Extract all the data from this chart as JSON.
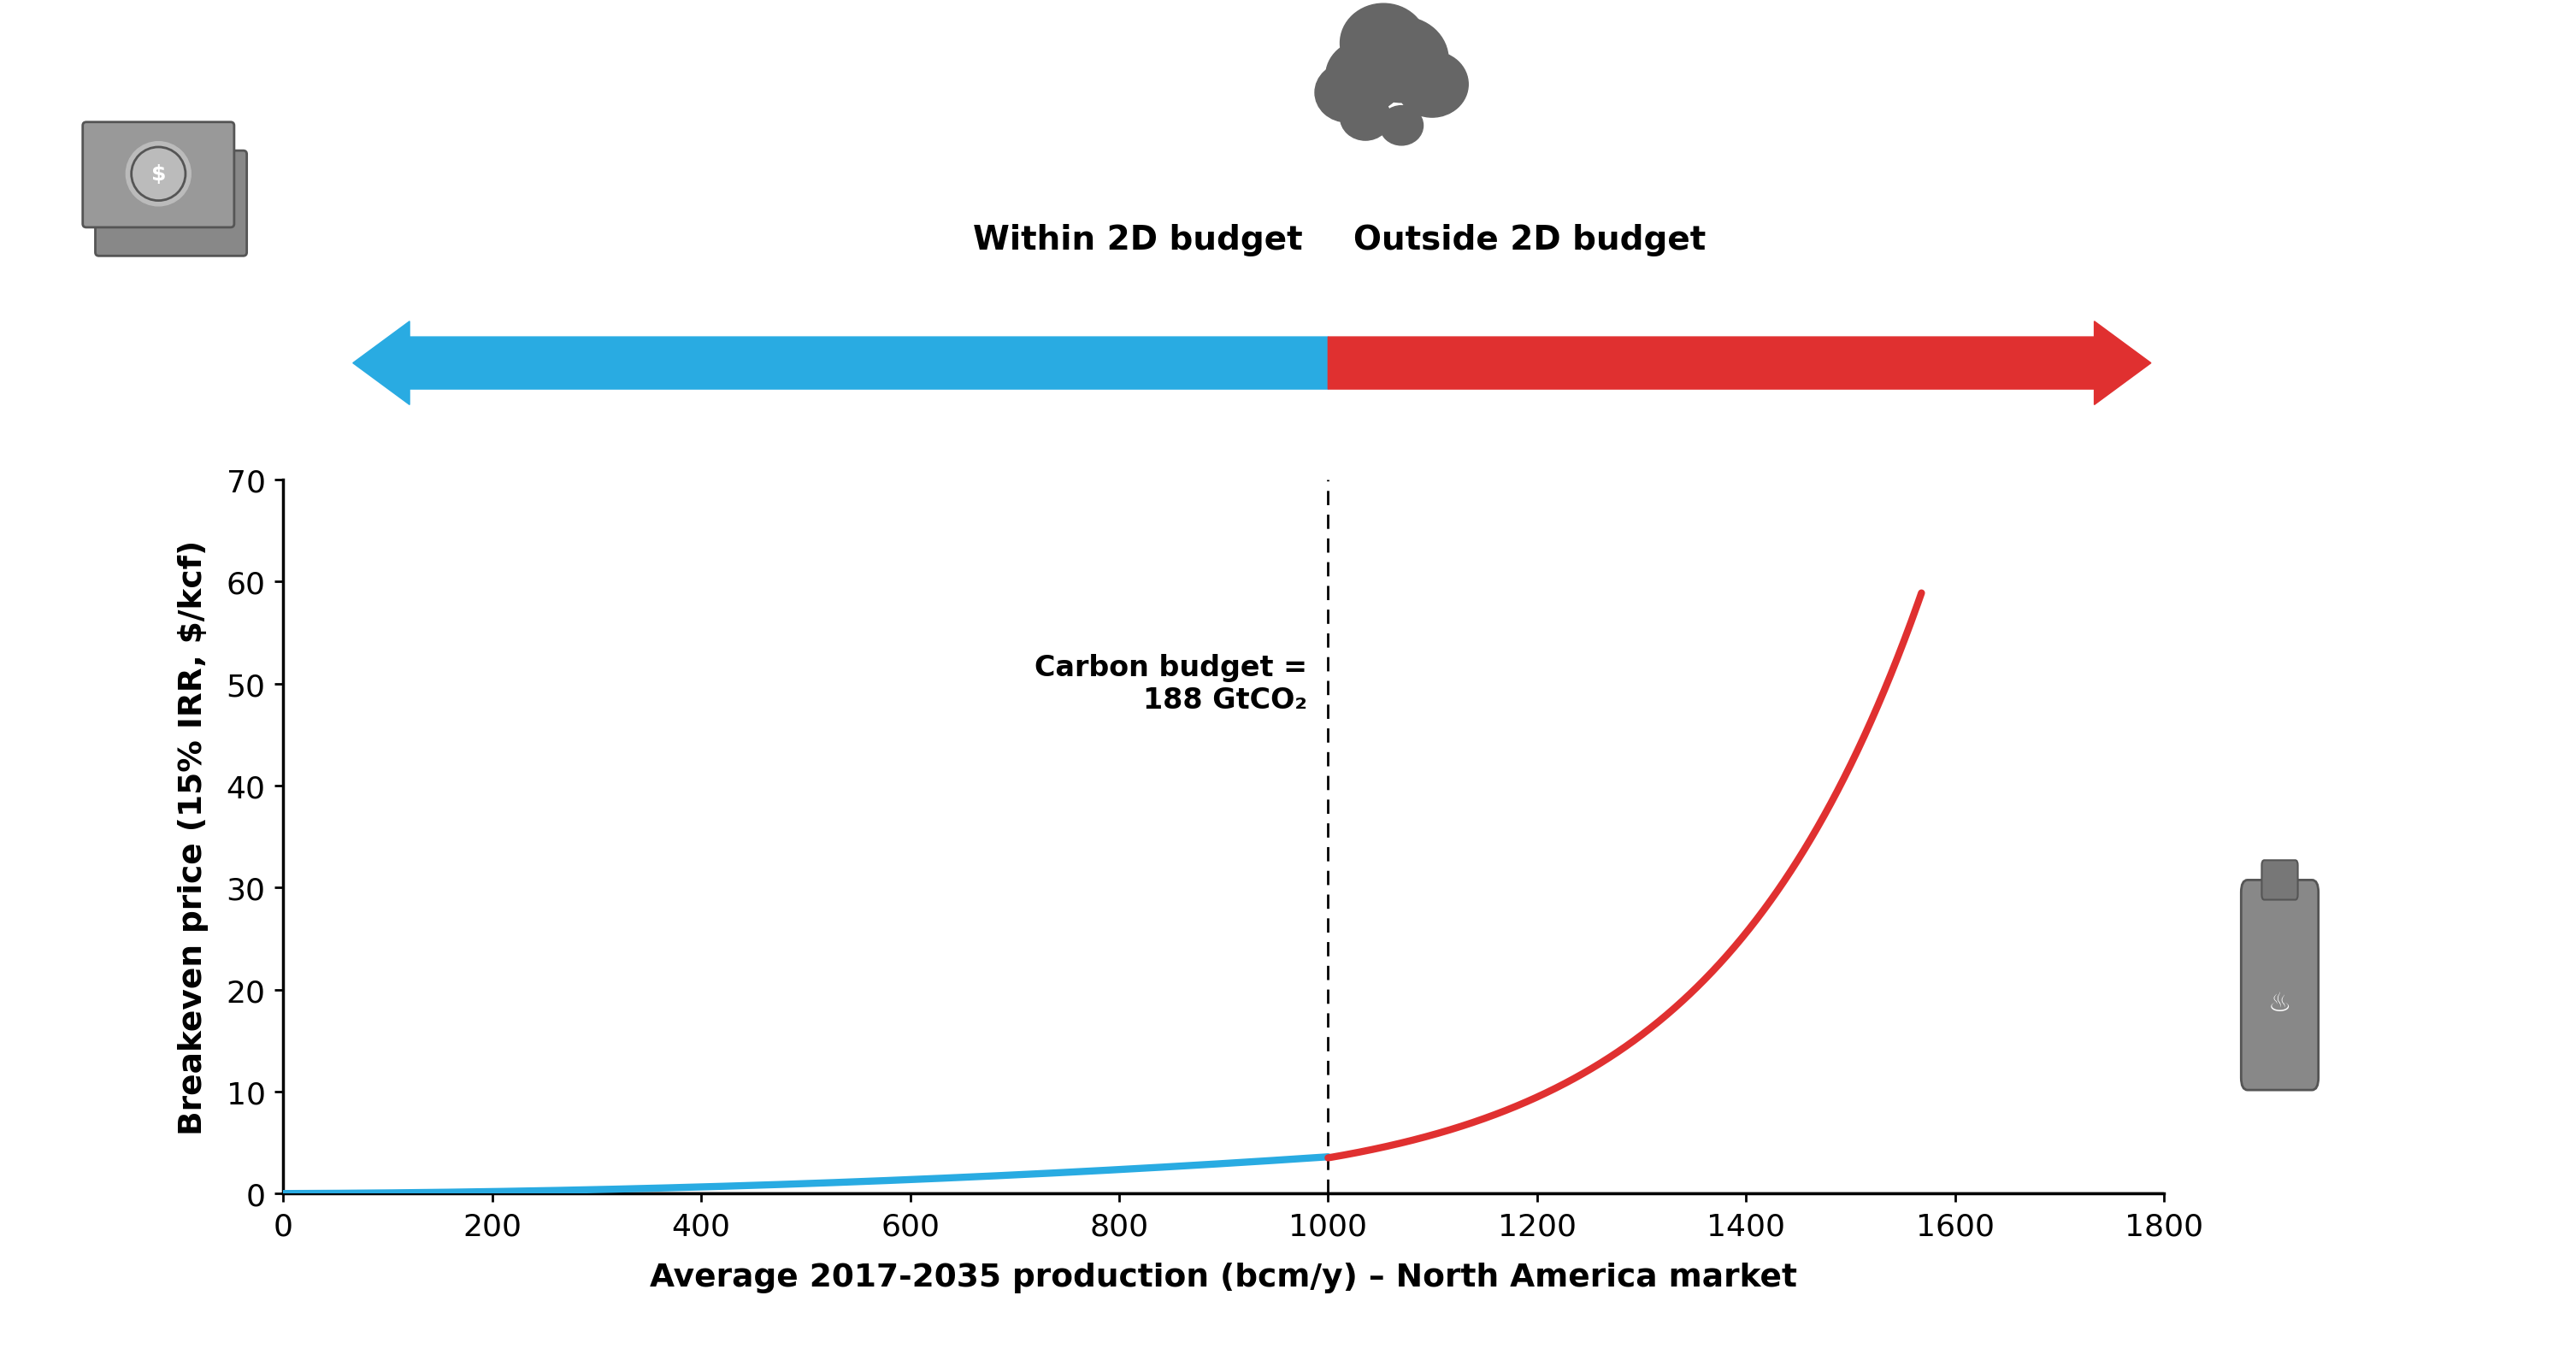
{
  "xlabel": "Average 2017-2035 production (bcm/y) – North America market",
  "ylabel": "Breakeven price (15% IRR, $/kcf)",
  "xlim": [
    0,
    1800
  ],
  "ylim": [
    0,
    70
  ],
  "xticks": [
    0,
    200,
    400,
    600,
    800,
    1000,
    1200,
    1400,
    1600,
    1800
  ],
  "yticks": [
    0,
    10,
    20,
    30,
    40,
    50,
    60,
    70
  ],
  "carbon_budget_x": 1000,
  "carbon_budget_label_line1": "Carbon budget =",
  "carbon_budget_label_line2": "188 GtCO₂",
  "within_label": "Within 2D budget",
  "outside_label": "Outside 2D budget",
  "blue_color": "#29ABE2",
  "red_color": "#E03030",
  "background_color": "#FFFFFF",
  "curve_linewidth": 6
}
